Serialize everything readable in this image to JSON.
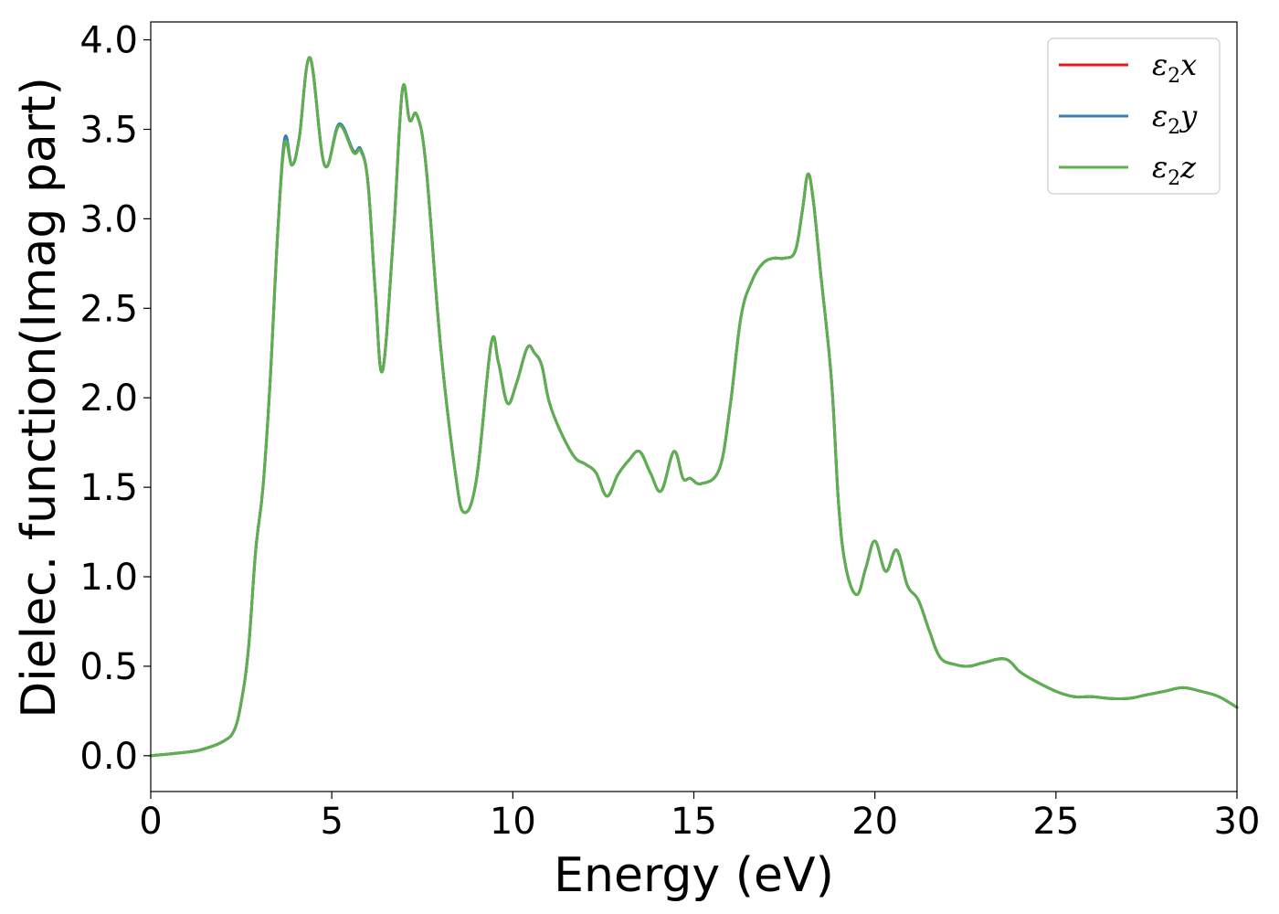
{
  "chart_data": {
    "type": "line",
    "xlabel": "Energy (eV)",
    "ylabel": "Dielec. function(Imag part)",
    "xlim": [
      0,
      30
    ],
    "ylim": [
      -0.2,
      4.1
    ],
    "xticks": [
      0,
      5,
      10,
      15,
      20,
      25,
      30
    ],
    "xtick_labels": [
      "0",
      "5",
      "10",
      "15",
      "20",
      "25",
      "30"
    ],
    "yticks": [
      0.0,
      0.5,
      1.0,
      1.5,
      2.0,
      2.5,
      3.0,
      3.5,
      4.0
    ],
    "ytick_labels": [
      "0.0",
      "0.5",
      "1.0",
      "1.5",
      "2.0",
      "2.5",
      "3.0",
      "3.5",
      "4.0"
    ],
    "grid": false,
    "legend_position": "top-right",
    "series": [
      {
        "name": "ε₂x",
        "name_base": "ε",
        "name_sub": "2",
        "name_var": "x",
        "color": "#e41a1c",
        "x": [
          0,
          1,
          1.5,
          2,
          2.3,
          2.5,
          2.7,
          2.9,
          3.1,
          3.3,
          3.5,
          3.7,
          3.9,
          4.1,
          4.4,
          4.8,
          5.2,
          5.6,
          5.8,
          6.0,
          6.2,
          6.4,
          6.7,
          6.95,
          7.15,
          7.35,
          7.6,
          8.0,
          8.4,
          8.65,
          9.0,
          9.4,
          9.6,
          9.85,
          10.1,
          10.4,
          10.6,
          10.8,
          11.0,
          11.3,
          11.7,
          12.0,
          12.3,
          12.6,
          12.9,
          13.2,
          13.5,
          13.8,
          14.1,
          14.45,
          14.7,
          14.9,
          15.2,
          15.7,
          16.0,
          16.3,
          16.6,
          16.9,
          17.2,
          17.5,
          17.8,
          18.0,
          18.15,
          18.3,
          18.5,
          18.8,
          19.0,
          19.2,
          19.5,
          19.75,
          20.0,
          20.3,
          20.6,
          20.9,
          21.2,
          21.5,
          21.8,
          22.2,
          22.6,
          23.0,
          23.6,
          24.0,
          24.4,
          25.0,
          25.5,
          26.0,
          26.5,
          27.0,
          27.5,
          28.0,
          28.5,
          29.0,
          29.5,
          30.0
        ],
        "values": [
          0.0,
          0.02,
          0.04,
          0.08,
          0.14,
          0.3,
          0.6,
          1.15,
          1.5,
          2.1,
          2.9,
          3.42,
          3.3,
          3.45,
          3.9,
          3.3,
          3.52,
          3.37,
          3.38,
          3.2,
          2.6,
          2.15,
          2.9,
          3.72,
          3.55,
          3.58,
          3.3,
          2.3,
          1.6,
          1.36,
          1.55,
          2.3,
          2.2,
          1.97,
          2.08,
          2.28,
          2.25,
          2.18,
          1.98,
          1.82,
          1.67,
          1.63,
          1.58,
          1.45,
          1.57,
          1.65,
          1.7,
          1.58,
          1.48,
          1.7,
          1.55,
          1.55,
          1.52,
          1.6,
          1.95,
          2.45,
          2.65,
          2.75,
          2.78,
          2.78,
          2.82,
          3.05,
          3.25,
          3.1,
          2.7,
          2.1,
          1.4,
          1.05,
          0.9,
          1.05,
          1.2,
          1.03,
          1.15,
          0.95,
          0.87,
          0.7,
          0.55,
          0.51,
          0.5,
          0.52,
          0.54,
          0.47,
          0.42,
          0.36,
          0.33,
          0.33,
          0.32,
          0.32,
          0.34,
          0.36,
          0.38,
          0.36,
          0.33,
          0.27
        ]
      },
      {
        "name": "ε₂y",
        "name_base": "ε",
        "name_sub": "2",
        "name_var": "y",
        "color": "#377eb8",
        "x": [
          0,
          1,
          1.5,
          2,
          2.3,
          2.5,
          2.7,
          2.9,
          3.1,
          3.3,
          3.5,
          3.7,
          3.9,
          4.1,
          4.4,
          4.8,
          5.2,
          5.6,
          5.8,
          6.0,
          6.2,
          6.4,
          6.7,
          6.95,
          7.15,
          7.35,
          7.6,
          8.0,
          8.4,
          8.65,
          9.0,
          9.4,
          9.6,
          9.85,
          10.1,
          10.4,
          10.6,
          10.8,
          11.0,
          11.3,
          11.7,
          12.0,
          12.3,
          12.6,
          12.9,
          13.2,
          13.5,
          13.8,
          14.1,
          14.45,
          14.7,
          14.9,
          15.2,
          15.7,
          16.0,
          16.3,
          16.6,
          16.9,
          17.2,
          17.5,
          17.8,
          18.0,
          18.15,
          18.3,
          18.5,
          18.8,
          19.0,
          19.2,
          19.5,
          19.75,
          20.0,
          20.3,
          20.6,
          20.9,
          21.2,
          21.5,
          21.8,
          22.2,
          22.6,
          23.0,
          23.6,
          24.0,
          24.4,
          25.0,
          25.5,
          26.0,
          26.5,
          27.0,
          27.5,
          28.0,
          28.5,
          29.0,
          29.5,
          30.0
        ],
        "values": [
          0.0,
          0.02,
          0.04,
          0.08,
          0.14,
          0.3,
          0.6,
          1.15,
          1.5,
          2.1,
          2.9,
          3.45,
          3.3,
          3.45,
          3.9,
          3.3,
          3.53,
          3.38,
          3.39,
          3.2,
          2.6,
          2.15,
          2.9,
          3.72,
          3.55,
          3.58,
          3.3,
          2.3,
          1.6,
          1.36,
          1.55,
          2.3,
          2.2,
          1.97,
          2.08,
          2.28,
          2.25,
          2.18,
          1.98,
          1.82,
          1.67,
          1.63,
          1.58,
          1.45,
          1.57,
          1.65,
          1.7,
          1.58,
          1.48,
          1.7,
          1.55,
          1.55,
          1.52,
          1.6,
          1.95,
          2.45,
          2.65,
          2.75,
          2.78,
          2.78,
          2.82,
          3.05,
          3.25,
          3.1,
          2.7,
          2.1,
          1.4,
          1.05,
          0.9,
          1.05,
          1.2,
          1.03,
          1.15,
          0.95,
          0.87,
          0.7,
          0.55,
          0.51,
          0.5,
          0.52,
          0.54,
          0.47,
          0.42,
          0.36,
          0.33,
          0.33,
          0.32,
          0.32,
          0.34,
          0.36,
          0.38,
          0.36,
          0.33,
          0.27
        ]
      },
      {
        "name": "ε₂z",
        "name_base": "ε",
        "name_sub": "2",
        "name_var": "z",
        "color": "#5cb04d",
        "x": [
          0,
          1,
          1.5,
          2,
          2.3,
          2.5,
          2.7,
          2.9,
          3.1,
          3.3,
          3.5,
          3.7,
          3.9,
          4.1,
          4.4,
          4.8,
          5.2,
          5.6,
          5.8,
          6.0,
          6.2,
          6.4,
          6.7,
          6.95,
          7.15,
          7.35,
          7.6,
          8.0,
          8.4,
          8.65,
          9.0,
          9.4,
          9.6,
          9.85,
          10.1,
          10.4,
          10.6,
          10.8,
          11.0,
          11.3,
          11.7,
          12.0,
          12.3,
          12.6,
          12.9,
          13.2,
          13.5,
          13.8,
          14.1,
          14.45,
          14.7,
          14.9,
          15.2,
          15.7,
          16.0,
          16.3,
          16.6,
          16.9,
          17.2,
          17.5,
          17.8,
          18.0,
          18.15,
          18.3,
          18.5,
          18.8,
          19.0,
          19.2,
          19.5,
          19.75,
          20.0,
          20.3,
          20.6,
          20.9,
          21.2,
          21.5,
          21.8,
          22.2,
          22.6,
          23.0,
          23.6,
          24.0,
          24.4,
          25.0,
          25.5,
          26.0,
          26.5,
          27.0,
          27.5,
          28.0,
          28.5,
          29.0,
          29.5,
          30.0
        ],
        "values": [
          0.0,
          0.02,
          0.04,
          0.08,
          0.14,
          0.3,
          0.6,
          1.15,
          1.5,
          2.1,
          2.9,
          3.42,
          3.3,
          3.45,
          3.9,
          3.3,
          3.52,
          3.37,
          3.38,
          3.2,
          2.6,
          2.15,
          2.9,
          3.72,
          3.55,
          3.58,
          3.3,
          2.3,
          1.6,
          1.36,
          1.55,
          2.3,
          2.2,
          1.97,
          2.08,
          2.28,
          2.25,
          2.18,
          1.98,
          1.82,
          1.67,
          1.63,
          1.58,
          1.45,
          1.57,
          1.65,
          1.7,
          1.58,
          1.48,
          1.7,
          1.55,
          1.55,
          1.52,
          1.6,
          1.95,
          2.45,
          2.65,
          2.75,
          2.78,
          2.78,
          2.82,
          3.05,
          3.25,
          3.1,
          2.7,
          2.1,
          1.4,
          1.05,
          0.9,
          1.05,
          1.2,
          1.03,
          1.15,
          0.95,
          0.87,
          0.7,
          0.55,
          0.51,
          0.5,
          0.52,
          0.54,
          0.47,
          0.42,
          0.36,
          0.33,
          0.33,
          0.32,
          0.32,
          0.34,
          0.36,
          0.38,
          0.36,
          0.33,
          0.27
        ]
      }
    ]
  }
}
